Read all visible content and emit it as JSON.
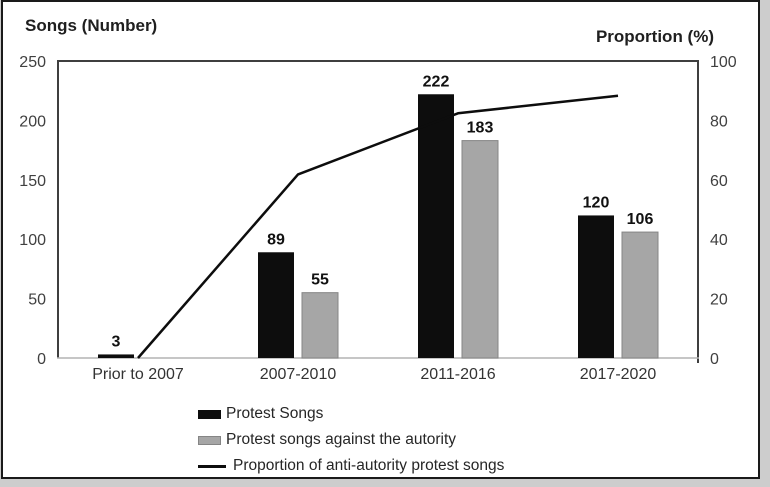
{
  "chart_data": {
    "type": "bar",
    "subtype": "combo-bar-line-dual-axis",
    "title": "",
    "categories": [
      "Prior to 2007",
      "2007-2010",
      "2011-2016",
      "2017-2020"
    ],
    "series": [
      {
        "name": "Protest Songs",
        "kind": "bar",
        "axis": "left",
        "color": "#0d0d0d",
        "values": [
          3,
          89,
          222,
          120
        ],
        "data_labels": [
          "3",
          "89",
          "222",
          "120"
        ]
      },
      {
        "name": "Protest songs against the autority",
        "kind": "bar",
        "axis": "left",
        "color": "#a6a6a6",
        "values": [
          null,
          55,
          183,
          106
        ],
        "data_labels": [
          null,
          "55",
          "183",
          "106"
        ]
      },
      {
        "name": "Proportion of anti-autority protest songs",
        "kind": "line",
        "axis": "right",
        "color": "#0d0d0d",
        "values": [
          0,
          61.8,
          82.4,
          88.3
        ]
      }
    ],
    "left_axis": {
      "title": "Songs (Number)",
      "min": 0,
      "max": 250,
      "ticks": [
        0,
        50,
        100,
        150,
        200,
        250
      ]
    },
    "right_axis": {
      "title": "Proportion (%)",
      "min": 0,
      "max": 100,
      "ticks": [
        0,
        20,
        40,
        60,
        80,
        100
      ]
    },
    "grid": false,
    "legend_position": "bottom"
  },
  "legend": {
    "items": [
      {
        "label": "Protest Songs",
        "swatch": "black-square"
      },
      {
        "label": "Protest songs against the autority",
        "swatch": "gray-square"
      },
      {
        "label": "Proportion of anti-autority protest songs",
        "swatch": "black-line"
      }
    ]
  },
  "colors": {
    "bar_black": "#0d0d0d",
    "bar_gray": "#a6a6a6",
    "gray_bar_border": "#858585",
    "line": "#0d0d0d",
    "axis_frame": "#3f3f3f",
    "x_axis_line": "#b3b3b3",
    "outer_border": "#1a1a1a",
    "outer_margin": "#cdcdcd"
  }
}
